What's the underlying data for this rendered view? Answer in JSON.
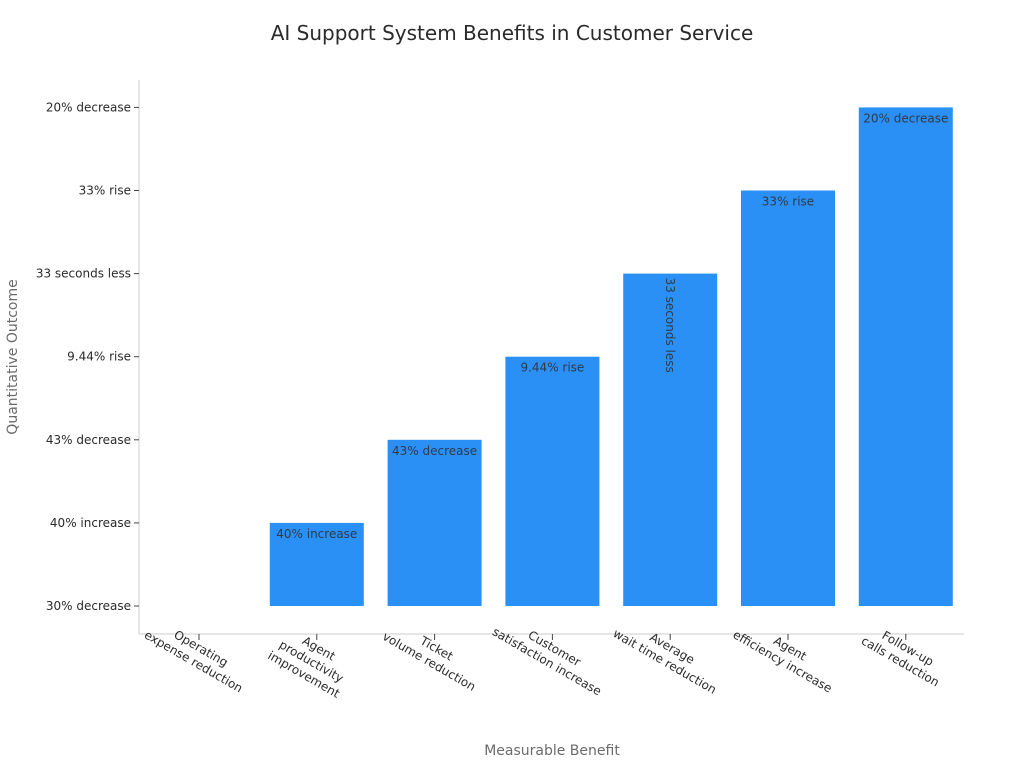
{
  "chart_data": {
    "type": "bar",
    "title": "AI Support System Benefits in Customer Service",
    "xlabel": "Measurable Benefit",
    "ylabel": "Quantitative Outcome",
    "categories": [
      [
        "Operating",
        "expense reduction"
      ],
      [
        "Agent",
        "productivity",
        "improvement"
      ],
      [
        "Ticket",
        "volume reduction"
      ],
      [
        "Customer",
        "satisfaction increase"
      ],
      [
        "Average",
        "wait time reduction"
      ],
      [
        "Agent",
        "efficiency increase"
      ],
      [
        "Follow-up",
        "calls reduction"
      ]
    ],
    "y_categories": [
      "30% decrease",
      "40% increase",
      "43% decrease",
      "9.44% rise",
      "33 seconds less",
      "33% rise",
      "20% decrease"
    ],
    "values": [
      "30% decrease",
      "40% increase",
      "43% decrease",
      "9.44% rise",
      "33 seconds less",
      "33% rise",
      "20% decrease"
    ],
    "data_labels": [
      "",
      "40% increase",
      "43% decrease",
      "9.44% rise",
      "33 seconds less",
      "33% rise",
      "20% decrease"
    ],
    "vertical_label_index": 4,
    "bar_color": "#2b90f5",
    "grid": false,
    "legend": "none"
  }
}
